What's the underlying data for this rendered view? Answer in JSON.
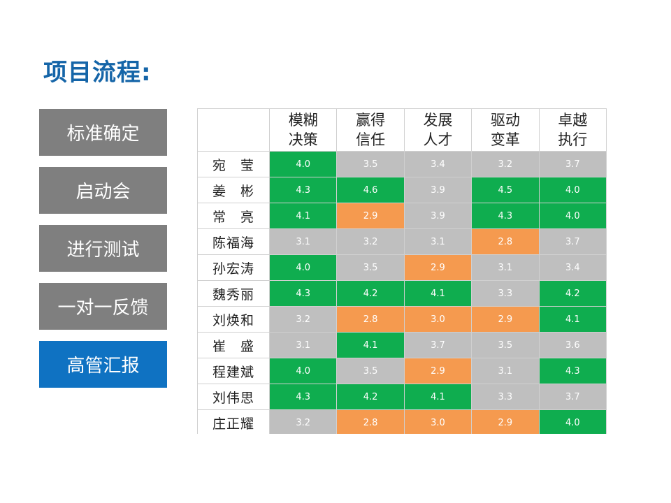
{
  "title": "项目流程:",
  "steps": [
    {
      "label": "标准确定",
      "active": false
    },
    {
      "label": "启动会",
      "active": false
    },
    {
      "label": "进行测试",
      "active": false
    },
    {
      "label": "一对一反馈",
      "active": false
    },
    {
      "label": "高管汇报",
      "active": true
    }
  ],
  "colors": {
    "green": "#0fad4f",
    "gray": "#bfbfbf",
    "orange": "#f59a4f",
    "accent_blue": "#0f72c2",
    "step_gray": "#7f7f7f",
    "title_blue": "#1565a8"
  },
  "table": {
    "columns": [
      {
        "line1": "模糊",
        "line2": "决策"
      },
      {
        "line1": "赢得",
        "line2": "信任"
      },
      {
        "line1": "发展",
        "line2": "人才"
      },
      {
        "line1": "驱动",
        "line2": "变革"
      },
      {
        "line1": "卓越",
        "line2": "执行"
      }
    ],
    "rows": [
      {
        "name": "宛　莹",
        "values": [
          "4.0",
          "3.5",
          "3.4",
          "3.2",
          "3.7"
        ],
        "colors": [
          "green",
          "gray",
          "gray",
          "gray",
          "gray"
        ]
      },
      {
        "name": "姜　彬",
        "values": [
          "4.3",
          "4.6",
          "3.9",
          "4.5",
          "4.0"
        ],
        "colors": [
          "green",
          "green",
          "gray",
          "green",
          "green"
        ]
      },
      {
        "name": "常　亮",
        "values": [
          "4.1",
          "2.9",
          "3.9",
          "4.3",
          "4.0"
        ],
        "colors": [
          "green",
          "orange",
          "gray",
          "green",
          "green"
        ]
      },
      {
        "name": "陈福海",
        "values": [
          "3.1",
          "3.2",
          "3.1",
          "2.8",
          "3.7"
        ],
        "colors": [
          "gray",
          "gray",
          "gray",
          "orange",
          "gray"
        ]
      },
      {
        "name": "孙宏涛",
        "values": [
          "4.0",
          "3.5",
          "2.9",
          "3.1",
          "3.4"
        ],
        "colors": [
          "green",
          "gray",
          "orange",
          "gray",
          "gray"
        ]
      },
      {
        "name": "魏秀丽",
        "values": [
          "4.3",
          "4.2",
          "4.1",
          "3.3",
          "4.2"
        ],
        "colors": [
          "green",
          "green",
          "green",
          "gray",
          "green"
        ]
      },
      {
        "name": "刘焕和",
        "values": [
          "3.2",
          "2.8",
          "3.0",
          "2.9",
          "4.1"
        ],
        "colors": [
          "gray",
          "orange",
          "orange",
          "orange",
          "green"
        ]
      },
      {
        "name": "崔　盛",
        "values": [
          "3.1",
          "4.1",
          "3.7",
          "3.5",
          "3.6"
        ],
        "colors": [
          "gray",
          "green",
          "gray",
          "gray",
          "gray"
        ]
      },
      {
        "name": "程建斌",
        "values": [
          "4.0",
          "3.5",
          "2.9",
          "3.1",
          "4.3"
        ],
        "colors": [
          "green",
          "gray",
          "orange",
          "gray",
          "green"
        ]
      },
      {
        "name": "刘伟思",
        "values": [
          "4.3",
          "4.2",
          "4.1",
          "3.3",
          "3.7"
        ],
        "colors": [
          "green",
          "green",
          "green",
          "gray",
          "gray"
        ]
      },
      {
        "name": "庄正耀",
        "values": [
          "3.2",
          "2.8",
          "3.0",
          "2.9",
          "4.0"
        ],
        "colors": [
          "gray",
          "orange",
          "orange",
          "orange",
          "green"
        ]
      }
    ]
  }
}
